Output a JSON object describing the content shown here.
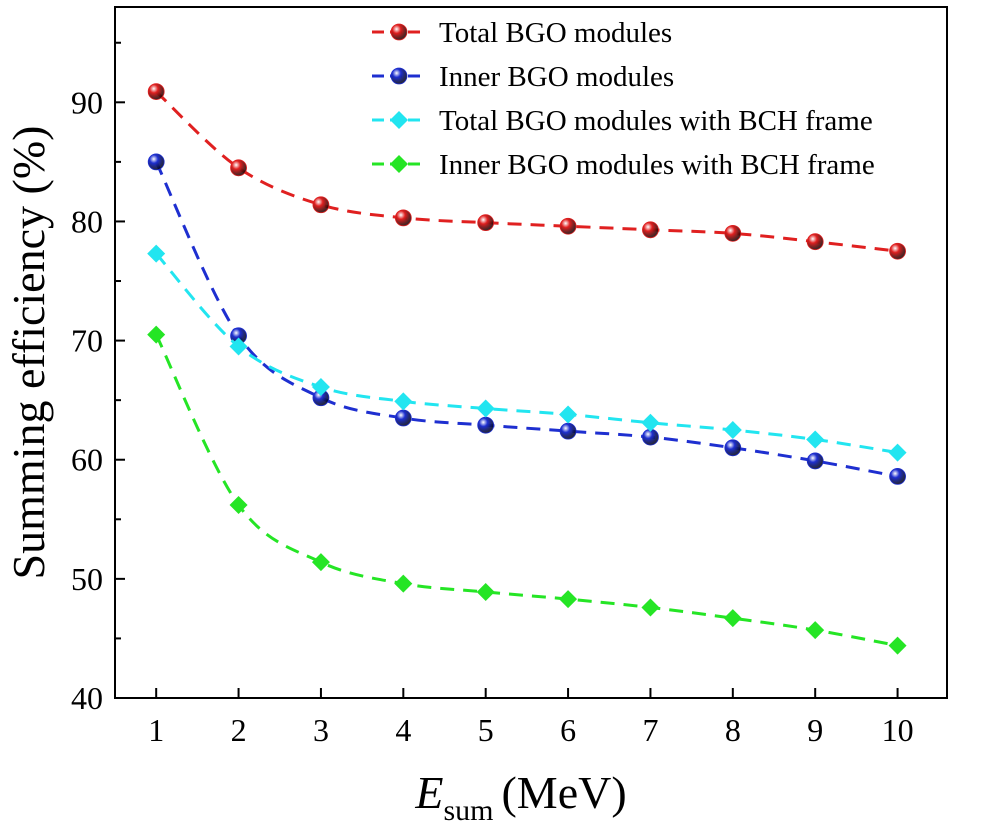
{
  "chart_data": {
    "type": "line",
    "title": "",
    "xlabel": {
      "symbol": "E",
      "subscript": "sum",
      "unit": "(MeV)"
    },
    "ylabel": "Summing efficiency (%)",
    "x": [
      1,
      2,
      3,
      4,
      5,
      6,
      7,
      8,
      9,
      10
    ],
    "xlim": [
      0.5,
      10.6
    ],
    "ylim": [
      40,
      98
    ],
    "xticks": [
      "1",
      "2",
      "3",
      "4",
      "5",
      "6",
      "7",
      "8",
      "9",
      "10"
    ],
    "yticks": [
      "40",
      "50",
      "60",
      "70",
      "80",
      "90"
    ],
    "legend_position": "top-right",
    "grid": false,
    "series": [
      {
        "name": "Total BGO modules",
        "marker": "sphere",
        "color": "#e02020",
        "values": [
          90.9,
          84.5,
          81.4,
          80.3,
          79.9,
          79.6,
          79.3,
          79.0,
          78.3,
          77.5
        ]
      },
      {
        "name": "Inner BGO modules",
        "marker": "sphere",
        "color": "#1e2fd0",
        "values": [
          85.0,
          70.4,
          65.2,
          63.5,
          62.9,
          62.4,
          61.9,
          61.0,
          59.9,
          58.6
        ]
      },
      {
        "name": "Total BGO modules with BCH frame",
        "marker": "diamond",
        "color": "#22e5f0",
        "values": [
          77.3,
          69.5,
          66.1,
          64.9,
          64.3,
          63.8,
          63.1,
          62.5,
          61.7,
          60.6
        ]
      },
      {
        "name": "Inner BGO modules with BCH frame",
        "marker": "diamond",
        "color": "#25e525",
        "values": [
          70.5,
          56.2,
          51.4,
          49.6,
          48.9,
          48.3,
          47.6,
          46.7,
          45.7,
          44.4
        ]
      }
    ]
  }
}
